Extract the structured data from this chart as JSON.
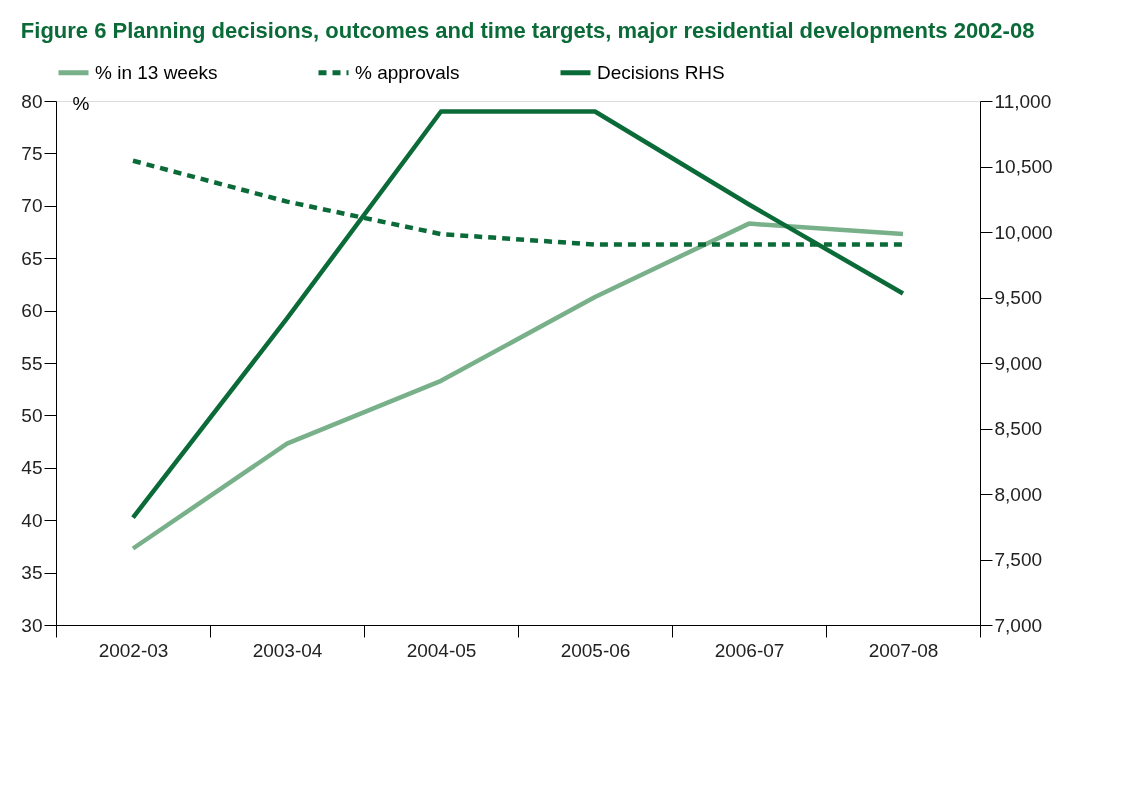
{
  "chart_data": {
    "type": "line",
    "title": "Figure 6 Planning decisions, outcomes and time targets, major residential developments 2002-08",
    "ylabel": "%",
    "categories": [
      "2002-03",
      "2003-04",
      "2004-05",
      "2005-06",
      "2006-07",
      "2007-08"
    ],
    "series": [
      {
        "name": "% in 13 weeks",
        "color": "#78b08a",
        "line_style": "solid",
        "values": [
          37.3,
          47.3,
          53.3,
          61.3,
          68.3,
          67.3
        ]
      },
      {
        "name": "% approvals",
        "color": "#0b6b38",
        "line_style": "dashed",
        "values": [
          74.3,
          70.4,
          67.3,
          66.3,
          66.3,
          66.3
        ]
      },
      {
        "name": "Decisions RHS",
        "color": "#0b6b38",
        "line_style": "solid",
        "axis": "y2",
        "values": [
          7820,
          9340,
          10920,
          10920,
          10210,
          9530
        ]
      }
    ],
    "ylim": [
      30,
      80
    ],
    "yticks": [
      30,
      35,
      40,
      45,
      50,
      55,
      60,
      65,
      70,
      75,
      80
    ],
    "y2lim": [
      7000,
      11000
    ],
    "y2ticks": [
      {
        "value": 7000,
        "label": "7,000"
      },
      {
        "value": 7500,
        "label": "7,500"
      },
      {
        "value": 8000,
        "label": "8,000"
      },
      {
        "value": 8500,
        "label": "8,500"
      },
      {
        "value": 9000,
        "label": "9,000"
      },
      {
        "value": 9500,
        "label": "9,500"
      },
      {
        "value": 10000,
        "label": "10,000"
      },
      {
        "value": 10500,
        "label": "10,500"
      },
      {
        "value": 11000,
        "label": "11,000"
      }
    ],
    "grid": false,
    "legend": "top",
    "marker": "none"
  }
}
